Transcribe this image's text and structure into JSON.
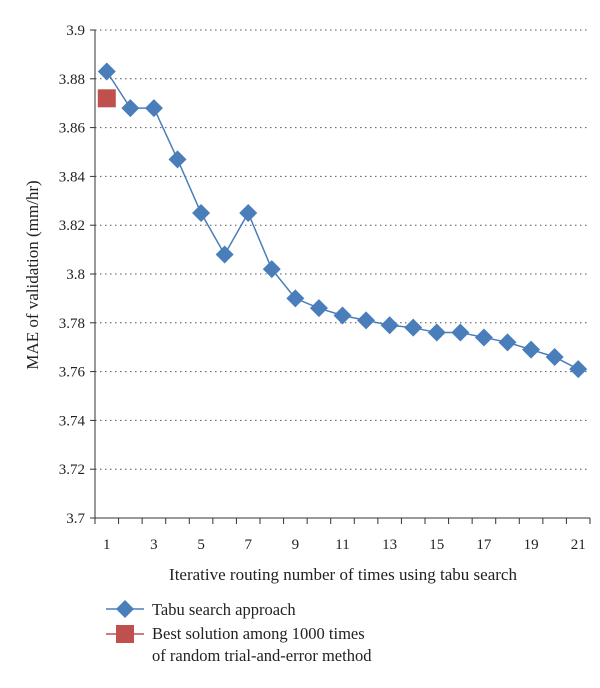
{
  "chart_data": {
    "type": "line",
    "xlabel": "Iterative routing number of times using tabu search",
    "ylabel": "MAE of validation (mm/hr)",
    "xlim": [
      0.5,
      21.5
    ],
    "ylim": [
      3.7,
      3.9
    ],
    "x_ticks": [
      "1",
      "3",
      "5",
      "7",
      "9",
      "11",
      "13",
      "15",
      "17",
      "19",
      "21"
    ],
    "y_ticks": [
      "3.9",
      "3.88",
      "3.86",
      "3.84",
      "3.82",
      "3.8",
      "3.78",
      "3.76",
      "3.74",
      "3.72",
      "3.7"
    ],
    "grid": "horizontal dotted",
    "legend_position": "bottom",
    "series": [
      {
        "name": "Tabu search approach",
        "color": "#4A7EBB",
        "marker": "diamond",
        "x": [
          1,
          2,
          3,
          4,
          5,
          6,
          7,
          8,
          9,
          10,
          11,
          12,
          13,
          14,
          15,
          16,
          17,
          18,
          19,
          20,
          21
        ],
        "values": [
          3.883,
          3.868,
          3.868,
          3.847,
          3.825,
          3.808,
          3.825,
          3.802,
          3.79,
          3.786,
          3.783,
          3.781,
          3.779,
          3.778,
          3.776,
          3.776,
          3.774,
          3.772,
          3.769,
          3.766,
          3.761
        ]
      },
      {
        "name": "Best solution among 1000 times\nof random trial-and-error method",
        "color": "#C0504D",
        "marker": "square",
        "x": [
          1
        ],
        "values": [
          3.872
        ]
      }
    ],
    "legend": {
      "tabu_label": "Tabu search approach",
      "best_label_line1": "Best solution among 1000 times",
      "best_label_line2": "of random trial-and-error method"
    }
  }
}
